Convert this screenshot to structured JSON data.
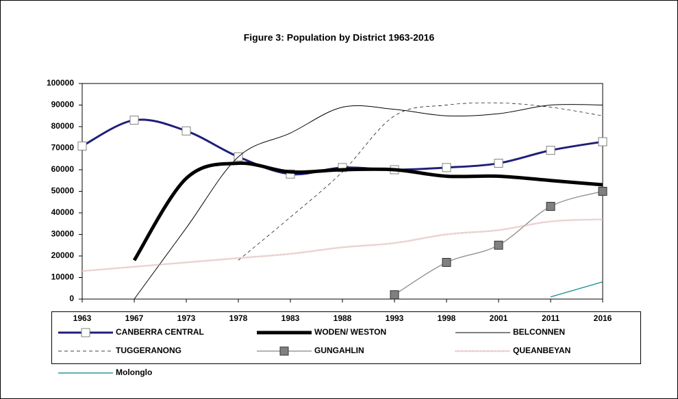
{
  "chart_data": {
    "type": "line",
    "title": "Figure 3:  Population by District 1963-2016",
    "categories": [
      "1963",
      "1967",
      "1973",
      "1978",
      "1983",
      "1988",
      "1993",
      "1998",
      "2001",
      "2011",
      "2016"
    ],
    "ylim": [
      0,
      100000
    ],
    "yticks": [
      0,
      10000,
      20000,
      30000,
      40000,
      50000,
      60000,
      70000,
      80000,
      90000,
      100000
    ],
    "series": [
      {
        "name": "CANBERRA CENTRAL",
        "color": "#1f1f7a",
        "width": 3,
        "marker": "square",
        "marker_fill": "#ffffff",
        "values": [
          71000,
          83000,
          78000,
          66000,
          58000,
          61000,
          60000,
          61000,
          63000,
          69000,
          73000
        ]
      },
      {
        "name": "WODEN/ WESTON",
        "color": "#000000",
        "width": 5,
        "values": [
          null,
          18000,
          56000,
          63000,
          59000,
          60000,
          60000,
          57000,
          57000,
          55000,
          53000
        ]
      },
      {
        "name": "BELCONNEN",
        "color": "#000000",
        "width": 1,
        "values": [
          null,
          0,
          33000,
          66000,
          77000,
          89000,
          88000,
          85000,
          86000,
          90000,
          90000
        ]
      },
      {
        "name": "TUGGERANONG",
        "color": "#000000",
        "width": 0.7,
        "dash": "5,4",
        "values": [
          null,
          null,
          null,
          18000,
          38000,
          59000,
          85000,
          90000,
          91000,
          89000,
          85000
        ]
      },
      {
        "name": "GUNGAHLIN",
        "color": "#999999",
        "width": 1.5,
        "marker": "square",
        "marker_fill": "#808080",
        "values": [
          null,
          null,
          null,
          null,
          null,
          null,
          2000,
          17000,
          25000,
          43000,
          50000
        ]
      },
      {
        "name": "QUEANBEYAN",
        "color": "#d9a6a6",
        "width": 2.5,
        "dash": "1,1",
        "values": [
          13000,
          15000,
          17000,
          19000,
          21000,
          24000,
          26000,
          30000,
          32000,
          36000,
          37000
        ]
      },
      {
        "name": "Molonglo",
        "color": "#008080",
        "width": 1.2,
        "values": [
          null,
          null,
          null,
          null,
          null,
          null,
          null,
          null,
          null,
          1000,
          8000
        ]
      }
    ]
  }
}
